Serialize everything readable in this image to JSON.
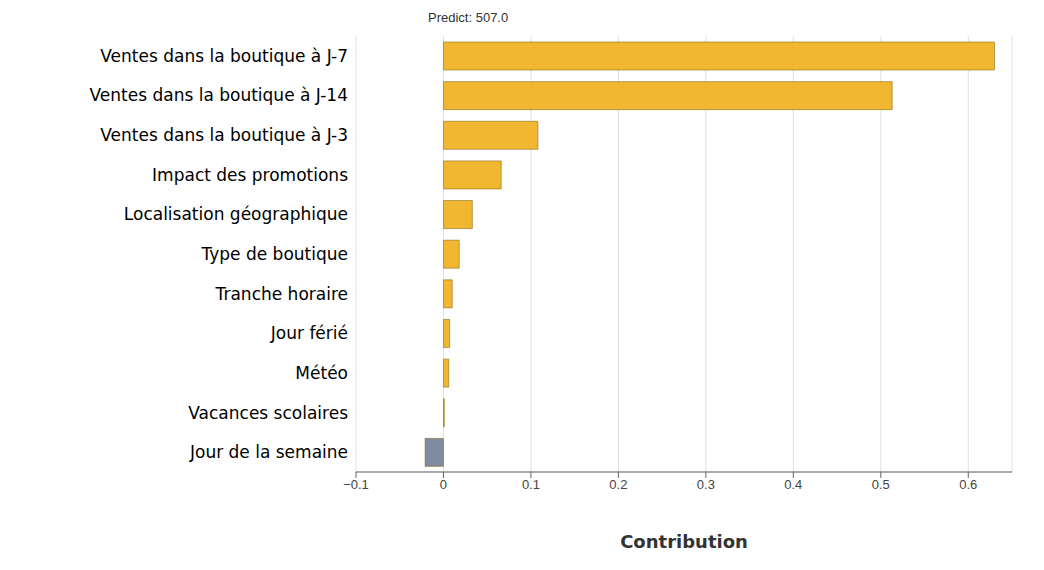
{
  "chart_data": {
    "type": "bar",
    "orientation": "horizontal",
    "title": "Predict: 507.0",
    "x_label": "Contribution",
    "categories": [
      "Ventes dans la boutique à J-7",
      "Ventes dans la boutique à J-14",
      "Ventes dans la boutique à J-3",
      "Impact des promotions",
      "Localisation géographique",
      "Type de boutique",
      "Tranche horaire",
      "Jour férié",
      "Météo",
      "Vacances scolaires",
      "Jour de la semaine"
    ],
    "values": [
      0.63,
      0.513,
      0.108,
      0.066,
      0.033,
      0.018,
      0.01,
      0.007,
      0.006,
      0.001,
      -0.021
    ],
    "colors": [
      "#f2b731",
      "#f2b731",
      "#f2b731",
      "#f2b731",
      "#f2b731",
      "#f2b731",
      "#f2b731",
      "#f2b731",
      "#f2b731",
      "#f2b731",
      "#7f8ba0"
    ],
    "xlim": [
      -0.1,
      0.65
    ],
    "xticks": [
      {
        "value": -0.1,
        "label": "−0.1"
      },
      0,
      0.1,
      0.2,
      0.3,
      0.4,
      0.5,
      0.6
    ],
    "grid": true
  }
}
